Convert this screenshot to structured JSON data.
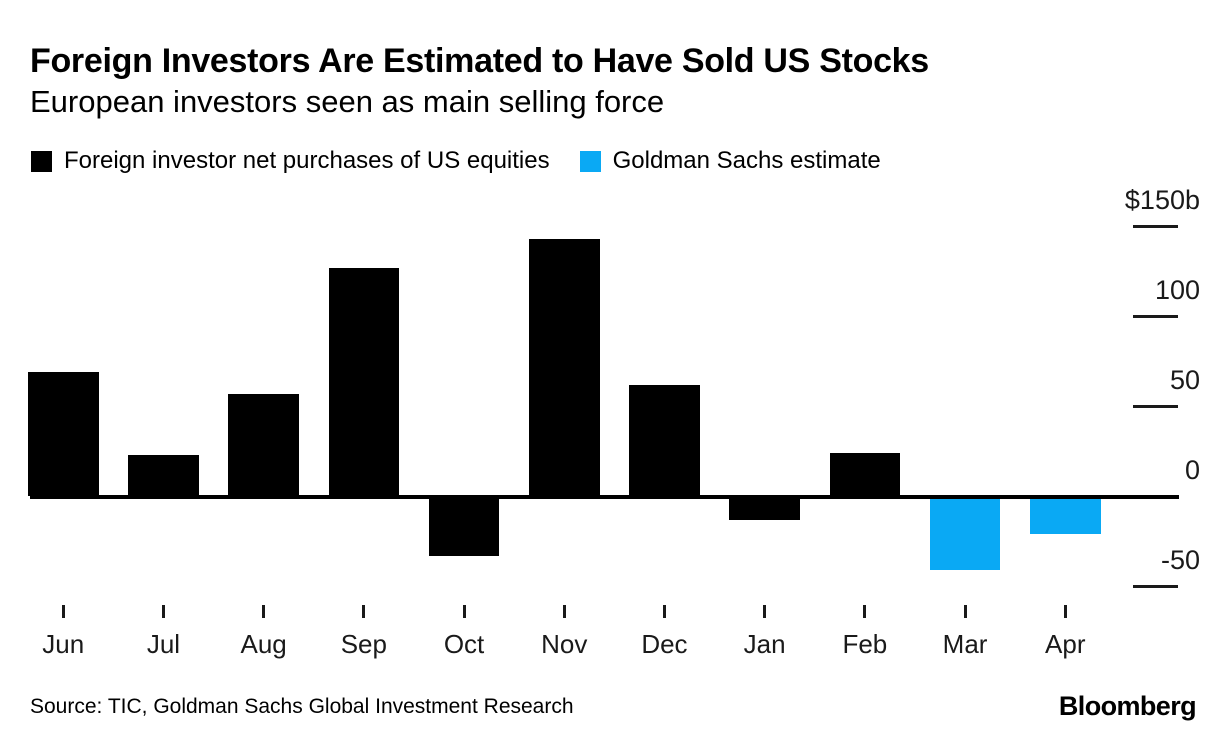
{
  "chart_data": {
    "type": "bar",
    "title": "Foreign Investors Are Estimated to Have Sold US Stocks",
    "subtitle": "European investors seen as main selling force",
    "categories": [
      "Jun",
      "Jul",
      "Aug",
      "Sep",
      "Oct",
      "Nov",
      "Dec",
      "Jan",
      "Feb",
      "Mar",
      "Apr"
    ],
    "series": [
      {
        "name": "Foreign investor net purchases of US equities",
        "color": "#000000",
        "values": [
          69,
          23,
          57,
          127,
          -33,
          143,
          62,
          -13,
          24,
          null,
          null
        ]
      },
      {
        "name": "Goldman Sachs estimate",
        "color": "#0aa9f4",
        "values": [
          null,
          null,
          null,
          null,
          null,
          null,
          null,
          null,
          null,
          -41,
          -21
        ]
      }
    ],
    "legend": [
      {
        "label": "Foreign investor net purchases of US equities",
        "color": "#000000"
      },
      {
        "label": "Goldman Sachs estimate",
        "color": "#0aa9f4"
      }
    ],
    "yticks": [
      {
        "label": "$150b",
        "value": 150
      },
      {
        "label": "100",
        "value": 100
      },
      {
        "label": "50",
        "value": 50
      },
      {
        "label": "0",
        "value": 0
      },
      {
        "label": "-50",
        "value": -50
      }
    ],
    "ylim": [
      -65,
      165
    ],
    "xlabel": "",
    "ylabel": "",
    "grid": false,
    "legend_position": "top-left",
    "axis_side": "right"
  },
  "footer": {
    "source": "Source: TIC, Goldman Sachs Global Investment Research",
    "brand": "Bloomberg"
  }
}
